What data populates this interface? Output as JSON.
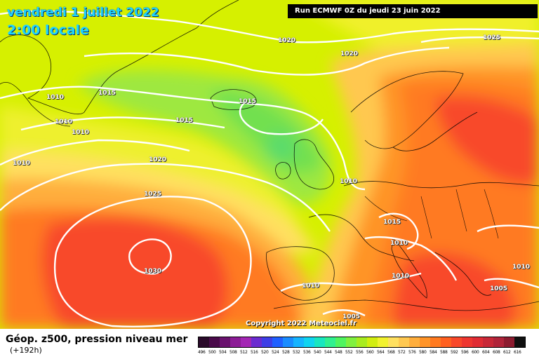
{
  "title": {
    "date": "vendredi 1 juillet 2022",
    "time": "2:00 locale"
  },
  "run_info": "Run ECMWF 0Z du jeudi 23 juin 2022",
  "copyright": "Copyright 2022 Meteociel.fr",
  "legend": {
    "field": "Géop. z500, pression niveau mer",
    "lead": "(+192h)",
    "scale_values": [
      "496",
      "500",
      "504",
      "508",
      "512",
      "516",
      "520",
      "524",
      "528",
      "532",
      "536",
      "540",
      "544",
      "548",
      "552",
      "556",
      "560",
      "564",
      "568",
      "572",
      "576",
      "580",
      "584",
      "588",
      "592",
      "596",
      "600",
      "604",
      "608",
      "612",
      "616"
    ],
    "scale_colors": [
      "#2a0a2a",
      "#4a0a4a",
      "#6a126e",
      "#8c1c96",
      "#a326b4",
      "#6b2bd0",
      "#3e3ee6",
      "#2060ff",
      "#1a8cff",
      "#16b4ff",
      "#10d4f0",
      "#18e6c0",
      "#30f090",
      "#50f460",
      "#80f040",
      "#a8ec20",
      "#d2ee10",
      "#f2f22e",
      "#ffe060",
      "#ffc850",
      "#ffae3c",
      "#ff9428",
      "#ff7a20",
      "#ff6020",
      "#f8482a",
      "#ee3630",
      "#e02c34",
      "#c82838",
      "#b0243a",
      "#8c1c30",
      "#101010"
    ]
  },
  "isobars": [
    {
      "label": "1020"
    },
    {
      "label": "1020"
    },
    {
      "label": "1025"
    },
    {
      "label": "1015"
    },
    {
      "label": "1015"
    },
    {
      "label": "1010"
    },
    {
      "label": "1010"
    },
    {
      "label": "1010"
    },
    {
      "label": "1015"
    },
    {
      "label": "1020"
    },
    {
      "label": "1025"
    },
    {
      "label": "1010"
    },
    {
      "label": "1030"
    },
    {
      "label": "1010"
    },
    {
      "label": "1015"
    },
    {
      "label": "1010"
    },
    {
      "label": "1010"
    },
    {
      "label": "1010"
    },
    {
      "label": "1010"
    },
    {
      "label": "1005"
    },
    {
      "label": "1005"
    }
  ]
}
